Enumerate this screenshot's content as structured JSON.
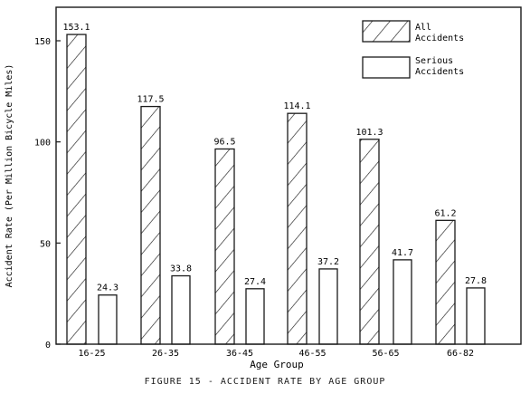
{
  "chart_data": {
    "type": "bar",
    "title": "FIGURE 15 - ACCIDENT RATE BY AGE GROUP",
    "xlabel": "Age Group",
    "ylabel": "Accident Rate (Per Million Bicycle Miles)",
    "ylim": [
      0,
      160
    ],
    "yticks": [
      "0",
      "50",
      "100",
      "150"
    ],
    "categories": [
      "16-25",
      "26-35",
      "36-45",
      "46-55",
      "56-65",
      "66-82"
    ],
    "series": [
      {
        "name": "All Accidents",
        "pattern": "hatched",
        "values": [
          153.1,
          117.5,
          96.5,
          114.1,
          101.3,
          61.2
        ],
        "labels": [
          "153.1",
          "117.5",
          "96.5",
          "114.1",
          "101.3",
          "61.2"
        ]
      },
      {
        "name": "Serious Accidents",
        "pattern": "open",
        "values": [
          24.3,
          33.8,
          27.4,
          37.2,
          41.7,
          27.8
        ],
        "labels": [
          "24.3",
          "33.8",
          "27.4",
          "37.2",
          "41.7",
          "27.8"
        ]
      }
    ],
    "legend": {
      "position": "top-right",
      "entries": [
        {
          "line1": "All",
          "line2": "Accidents"
        },
        {
          "line1": "Serious",
          "line2": "Accidents"
        }
      ]
    },
    "colors": {
      "ink": "#1a1a1a",
      "background": "#ffffff"
    }
  }
}
